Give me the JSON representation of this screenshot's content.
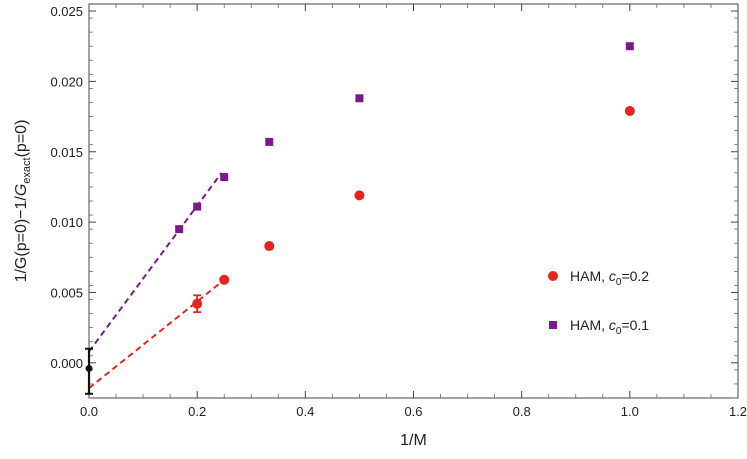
{
  "chart_data": {
    "type": "scatter",
    "xlabel": "1/M",
    "ylabel_parts": {
      "pre": "1/G(p=0)−1/",
      "italic": "G",
      "sub": "exact",
      "post": "(p=0)"
    },
    "xlim": [
      0,
      1.2
    ],
    "ylim": [
      -0.0025,
      0.0255
    ],
    "x_ticks": [
      0,
      0.2,
      0.4,
      0.6,
      0.8,
      1.0,
      1.2
    ],
    "x_tick_labels": [
      "0.0",
      "0.2",
      "0.4",
      "0.6",
      "0.8",
      "1.0",
      "1.2"
    ],
    "y_ticks": [
      0,
      0.005,
      0.01,
      0.015,
      0.02,
      0.025
    ],
    "y_tick_labels": [
      "0.000",
      "0.005",
      "0.010",
      "0.015",
      "0.020",
      "0.025"
    ],
    "legend_position": "right",
    "series": [
      {
        "name_prefix": "HAM, ",
        "name_c": "c",
        "name_sub": "0",
        "name_value": "=0.2",
        "marker": "circle",
        "color": "#e8221c",
        "points": [
          {
            "x": 0.2,
            "y": 0.0042,
            "err": 0.0006
          },
          {
            "x": 0.25,
            "y": 0.0059
          },
          {
            "x": 0.3333,
            "y": 0.0083
          },
          {
            "x": 0.5,
            "y": 0.0119
          },
          {
            "x": 1.0,
            "y": 0.0179
          }
        ],
        "fit_line": {
          "x0": 0.0,
          "y0": -0.0018,
          "x1": 0.25,
          "y1": 0.0059
        }
      },
      {
        "name_prefix": "HAM, ",
        "name_c": "c",
        "name_sub": "0",
        "name_value": "=0.1",
        "marker": "square",
        "color": "#7b1a8c",
        "points": [
          {
            "x": 0.1667,
            "y": 0.0095
          },
          {
            "x": 0.2,
            "y": 0.0111
          },
          {
            "x": 0.25,
            "y": 0.0132
          },
          {
            "x": 0.3333,
            "y": 0.0157
          },
          {
            "x": 0.5,
            "y": 0.0188
          },
          {
            "x": 1.0,
            "y": 0.0225
          }
        ],
        "fit_line": {
          "x0": 0.0,
          "y0": 0.0008,
          "x1": 0.245,
          "y1": 0.0135
        }
      }
    ],
    "extrapolated_point": {
      "x": 0.0,
      "y": -0.0004,
      "err_low": 0.0018,
      "err_high": 0.0014,
      "color": "#111111"
    }
  }
}
